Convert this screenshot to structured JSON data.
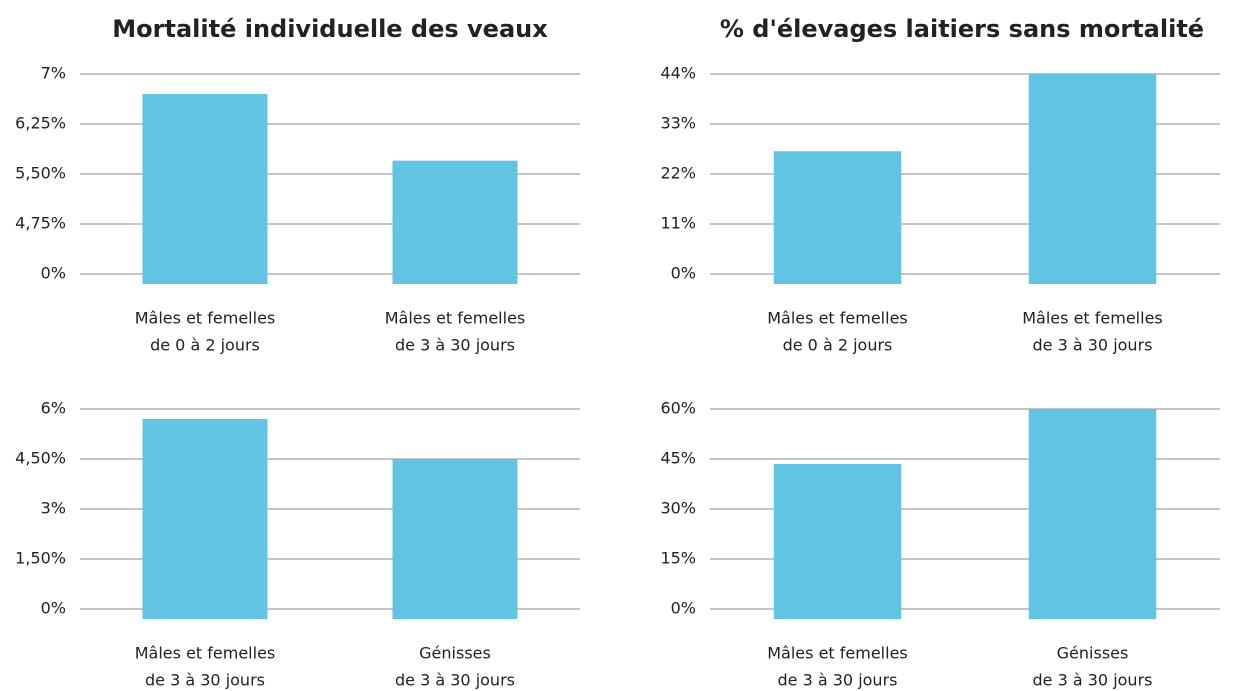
{
  "chart_data": [
    {
      "type": "bar",
      "title": "Mortalité individuelle des veaux",
      "categories": [
        [
          "Mâles et femelles",
          "de 0 à 2 jours"
        ],
        [
          "Mâles et femelles",
          "de 3 à 30 jours"
        ]
      ],
      "values": [
        6.7,
        5.7
      ],
      "color": "#62c4e3",
      "ylim": [
        0,
        7
      ],
      "yticks": [
        {
          "value": 0,
          "label": "0%"
        },
        {
          "value": 4.75,
          "label": "4,75%"
        },
        {
          "value": 5.5,
          "label": "5,50%"
        },
        {
          "value": 6.25,
          "label": "6,25%"
        },
        {
          "value": 7,
          "label": "7%"
        }
      ],
      "grid": true
    },
    {
      "type": "bar",
      "title": "% d'élevages laitiers sans mortalité",
      "categories": [
        [
          "Mâles et femelles",
          "de 0 à 2 jours"
        ],
        [
          "Mâles et femelles",
          "de 3 à 30 jours"
        ]
      ],
      "values": [
        27,
        44
      ],
      "color": "#62c4e3",
      "ylim": [
        0,
        44
      ],
      "yticks": [
        {
          "value": 0,
          "label": "0%"
        },
        {
          "value": 11,
          "label": "11%"
        },
        {
          "value": 22,
          "label": "22%"
        },
        {
          "value": 33,
          "label": "33%"
        },
        {
          "value": 44,
          "label": "44%"
        }
      ],
      "grid": true
    },
    {
      "type": "bar",
      "categories": [
        [
          "Mâles et femelles",
          "de 3 à 30 jours"
        ],
        [
          "Génisses",
          "de 3 à 30 jours"
        ]
      ],
      "values": [
        5.7,
        4.5
      ],
      "color": "#62c4e3",
      "ylim": [
        0,
        6
      ],
      "yticks": [
        {
          "value": 0,
          "label": "0%"
        },
        {
          "value": 1.5,
          "label": "1,50%"
        },
        {
          "value": 3,
          "label": "3%"
        },
        {
          "value": 4.5,
          "label": "4,50%"
        },
        {
          "value": 6,
          "label": "6%"
        }
      ],
      "grid": true
    },
    {
      "type": "bar",
      "categories": [
        [
          "Mâles et femelles",
          "de 3 à 30 jours"
        ],
        [
          "Génisses",
          "de 3 à 30 jours"
        ]
      ],
      "values": [
        43.5,
        60
      ],
      "color": "#62c4e3",
      "ylim": [
        0,
        60
      ],
      "yticks": [
        {
          "value": 0,
          "label": "0%"
        },
        {
          "value": 15,
          "label": "15%"
        },
        {
          "value": 30,
          "label": "30%"
        },
        {
          "value": 45,
          "label": "45%"
        },
        {
          "value": 60,
          "label": "60%"
        }
      ],
      "grid": true
    }
  ]
}
